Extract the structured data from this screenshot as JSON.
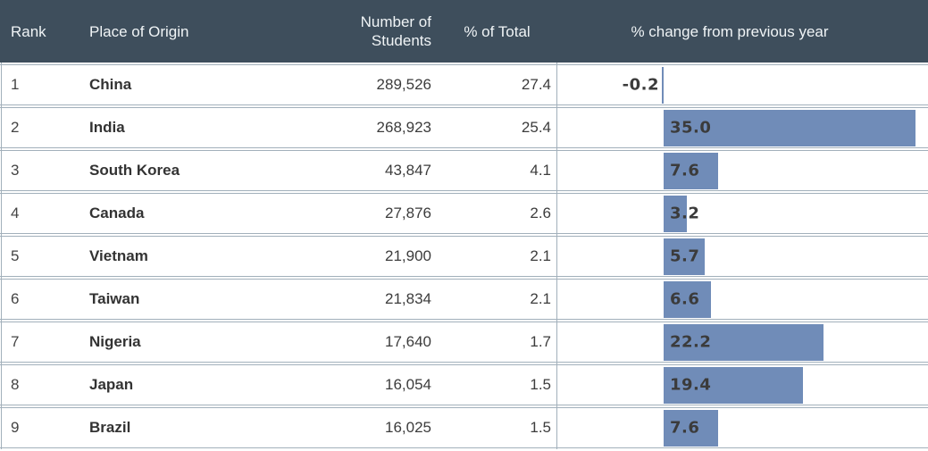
{
  "table": {
    "columns": {
      "rank": "Rank",
      "place": "Place of Origin",
      "students": "Number of Students",
      "pct_total": "% of Total",
      "change": "% change from previous year"
    },
    "rows": [
      {
        "rank": "1",
        "place": "China",
        "students": "289,526",
        "pct_total": "27.4",
        "change_label": "-0.2"
      },
      {
        "rank": "2",
        "place": "India",
        "students": "268,923",
        "pct_total": "25.4",
        "change_label": "35.0"
      },
      {
        "rank": "3",
        "place": "South Korea",
        "students": "43,847",
        "pct_total": "4.1",
        "change_label": "7.6"
      },
      {
        "rank": "4",
        "place": "Canada",
        "students": "27,876",
        "pct_total": "2.6",
        "change_label": "3.2"
      },
      {
        "rank": "5",
        "place": "Vietnam",
        "students": "21,900",
        "pct_total": "2.1",
        "change_label": "5.7"
      },
      {
        "rank": "6",
        "place": "Taiwan",
        "students": "21,834",
        "pct_total": "2.1",
        "change_label": "6.6"
      },
      {
        "rank": "7",
        "place": "Nigeria",
        "students": "17,640",
        "pct_total": "1.7",
        "change_label": "22.2"
      },
      {
        "rank": "8",
        "place": "Japan",
        "students": "16,054",
        "pct_total": "1.5",
        "change_label": "19.4"
      },
      {
        "rank": "9",
        "place": "Brazil",
        "students": "16,025",
        "pct_total": "1.5",
        "change_label": "7.6"
      }
    ]
  },
  "chart_data": {
    "type": "bar",
    "orientation": "horizontal",
    "title": "% change from previous year",
    "categories": [
      "China",
      "India",
      "South Korea",
      "Canada",
      "Vietnam",
      "Taiwan",
      "Nigeria",
      "Japan",
      "Brazil"
    ],
    "values": [
      -0.2,
      35.0,
      7.6,
      3.2,
      5.7,
      6.6,
      22.2,
      19.4,
      7.6
    ],
    "xlim": [
      -14.9,
      36.7
    ],
    "grid": false,
    "legend": "none",
    "value_labels": "shown at bar start, bold"
  },
  "colors": {
    "header_background": "#3e4e5c",
    "header_text": "#f0f4f6",
    "bar_fill": "#708cb8",
    "row_border": "#a2b0bb",
    "body_text": "#3c3c3c",
    "bar_label_text": "#3b3b3b"
  }
}
